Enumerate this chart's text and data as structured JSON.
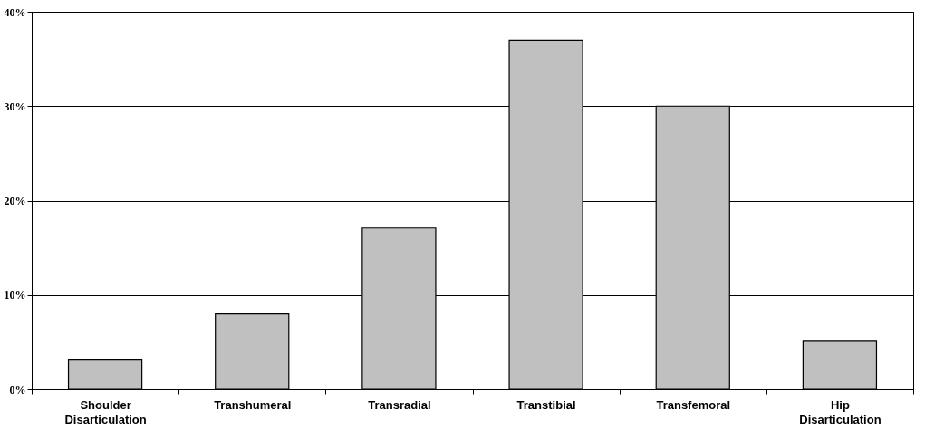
{
  "chart_data": {
    "type": "bar",
    "categories": [
      "Shoulder Disarticulation",
      "Transhumeral",
      "Transradial",
      "Transtibial",
      "Transfemoral",
      "Hip Disarticulation"
    ],
    "values": [
      3.1,
      8,
      17.1,
      37,
      30,
      5.1
    ],
    "color": "#c0c0c0",
    "ylim": [
      0,
      40
    ],
    "yticks": [
      {
        "value": 0,
        "label": "0%"
      },
      {
        "value": 10,
        "label": "10%"
      },
      {
        "value": 20,
        "label": "20%"
      },
      {
        "value": 30,
        "label": "30%"
      },
      {
        "value": 40,
        "label": "40%"
      }
    ],
    "grid": "y"
  }
}
